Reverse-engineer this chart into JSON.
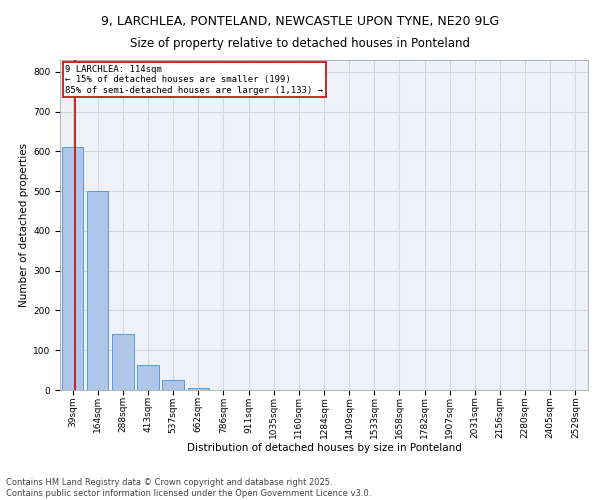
{
  "title_line1": "9, LARCHLEA, PONTELAND, NEWCASTLE UPON TYNE, NE20 9LG",
  "title_line2": "Size of property relative to detached houses in Ponteland",
  "xlabel": "Distribution of detached houses by size in Ponteland",
  "ylabel": "Number of detached properties",
  "bar_color": "#aec6e8",
  "bar_edge_color": "#5b9bd5",
  "grid_color": "#d0d8e8",
  "background_color": "#eef2f8",
  "bin_labels": [
    "39sqm",
    "164sqm",
    "288sqm",
    "413sqm",
    "537sqm",
    "662sqm",
    "786sqm",
    "911sqm",
    "1035sqm",
    "1160sqm",
    "1284sqm",
    "1409sqm",
    "1533sqm",
    "1658sqm",
    "1782sqm",
    "1907sqm",
    "2031sqm",
    "2156sqm",
    "2280sqm",
    "2405sqm",
    "2529sqm"
  ],
  "bar_values": [
    610,
    500,
    140,
    62,
    26,
    4,
    0,
    1,
    0,
    0,
    0,
    0,
    0,
    0,
    0,
    0,
    0,
    0,
    0,
    0,
    0
  ],
  "ylim": [
    0,
    830
  ],
  "yticks": [
    0,
    100,
    200,
    300,
    400,
    500,
    600,
    700,
    800
  ],
  "annotation_title": "9 LARCHLEA: 114sqm",
  "annotation_line1": "← 15% of detached houses are smaller (199)",
  "annotation_line2": "85% of semi-detached houses are larger (1,133) →",
  "red_line_color": "#cc0000",
  "annotation_box_color": "#ffffff",
  "annotation_box_edge": "#cc0000",
  "footer_line1": "Contains HM Land Registry data © Crown copyright and database right 2025.",
  "footer_line2": "Contains public sector information licensed under the Open Government Licence v3.0.",
  "title_fontsize": 9,
  "axis_fontsize": 7.5,
  "tick_fontsize": 6.5,
  "annotation_fontsize": 6.5,
  "footer_fontsize": 6.0
}
